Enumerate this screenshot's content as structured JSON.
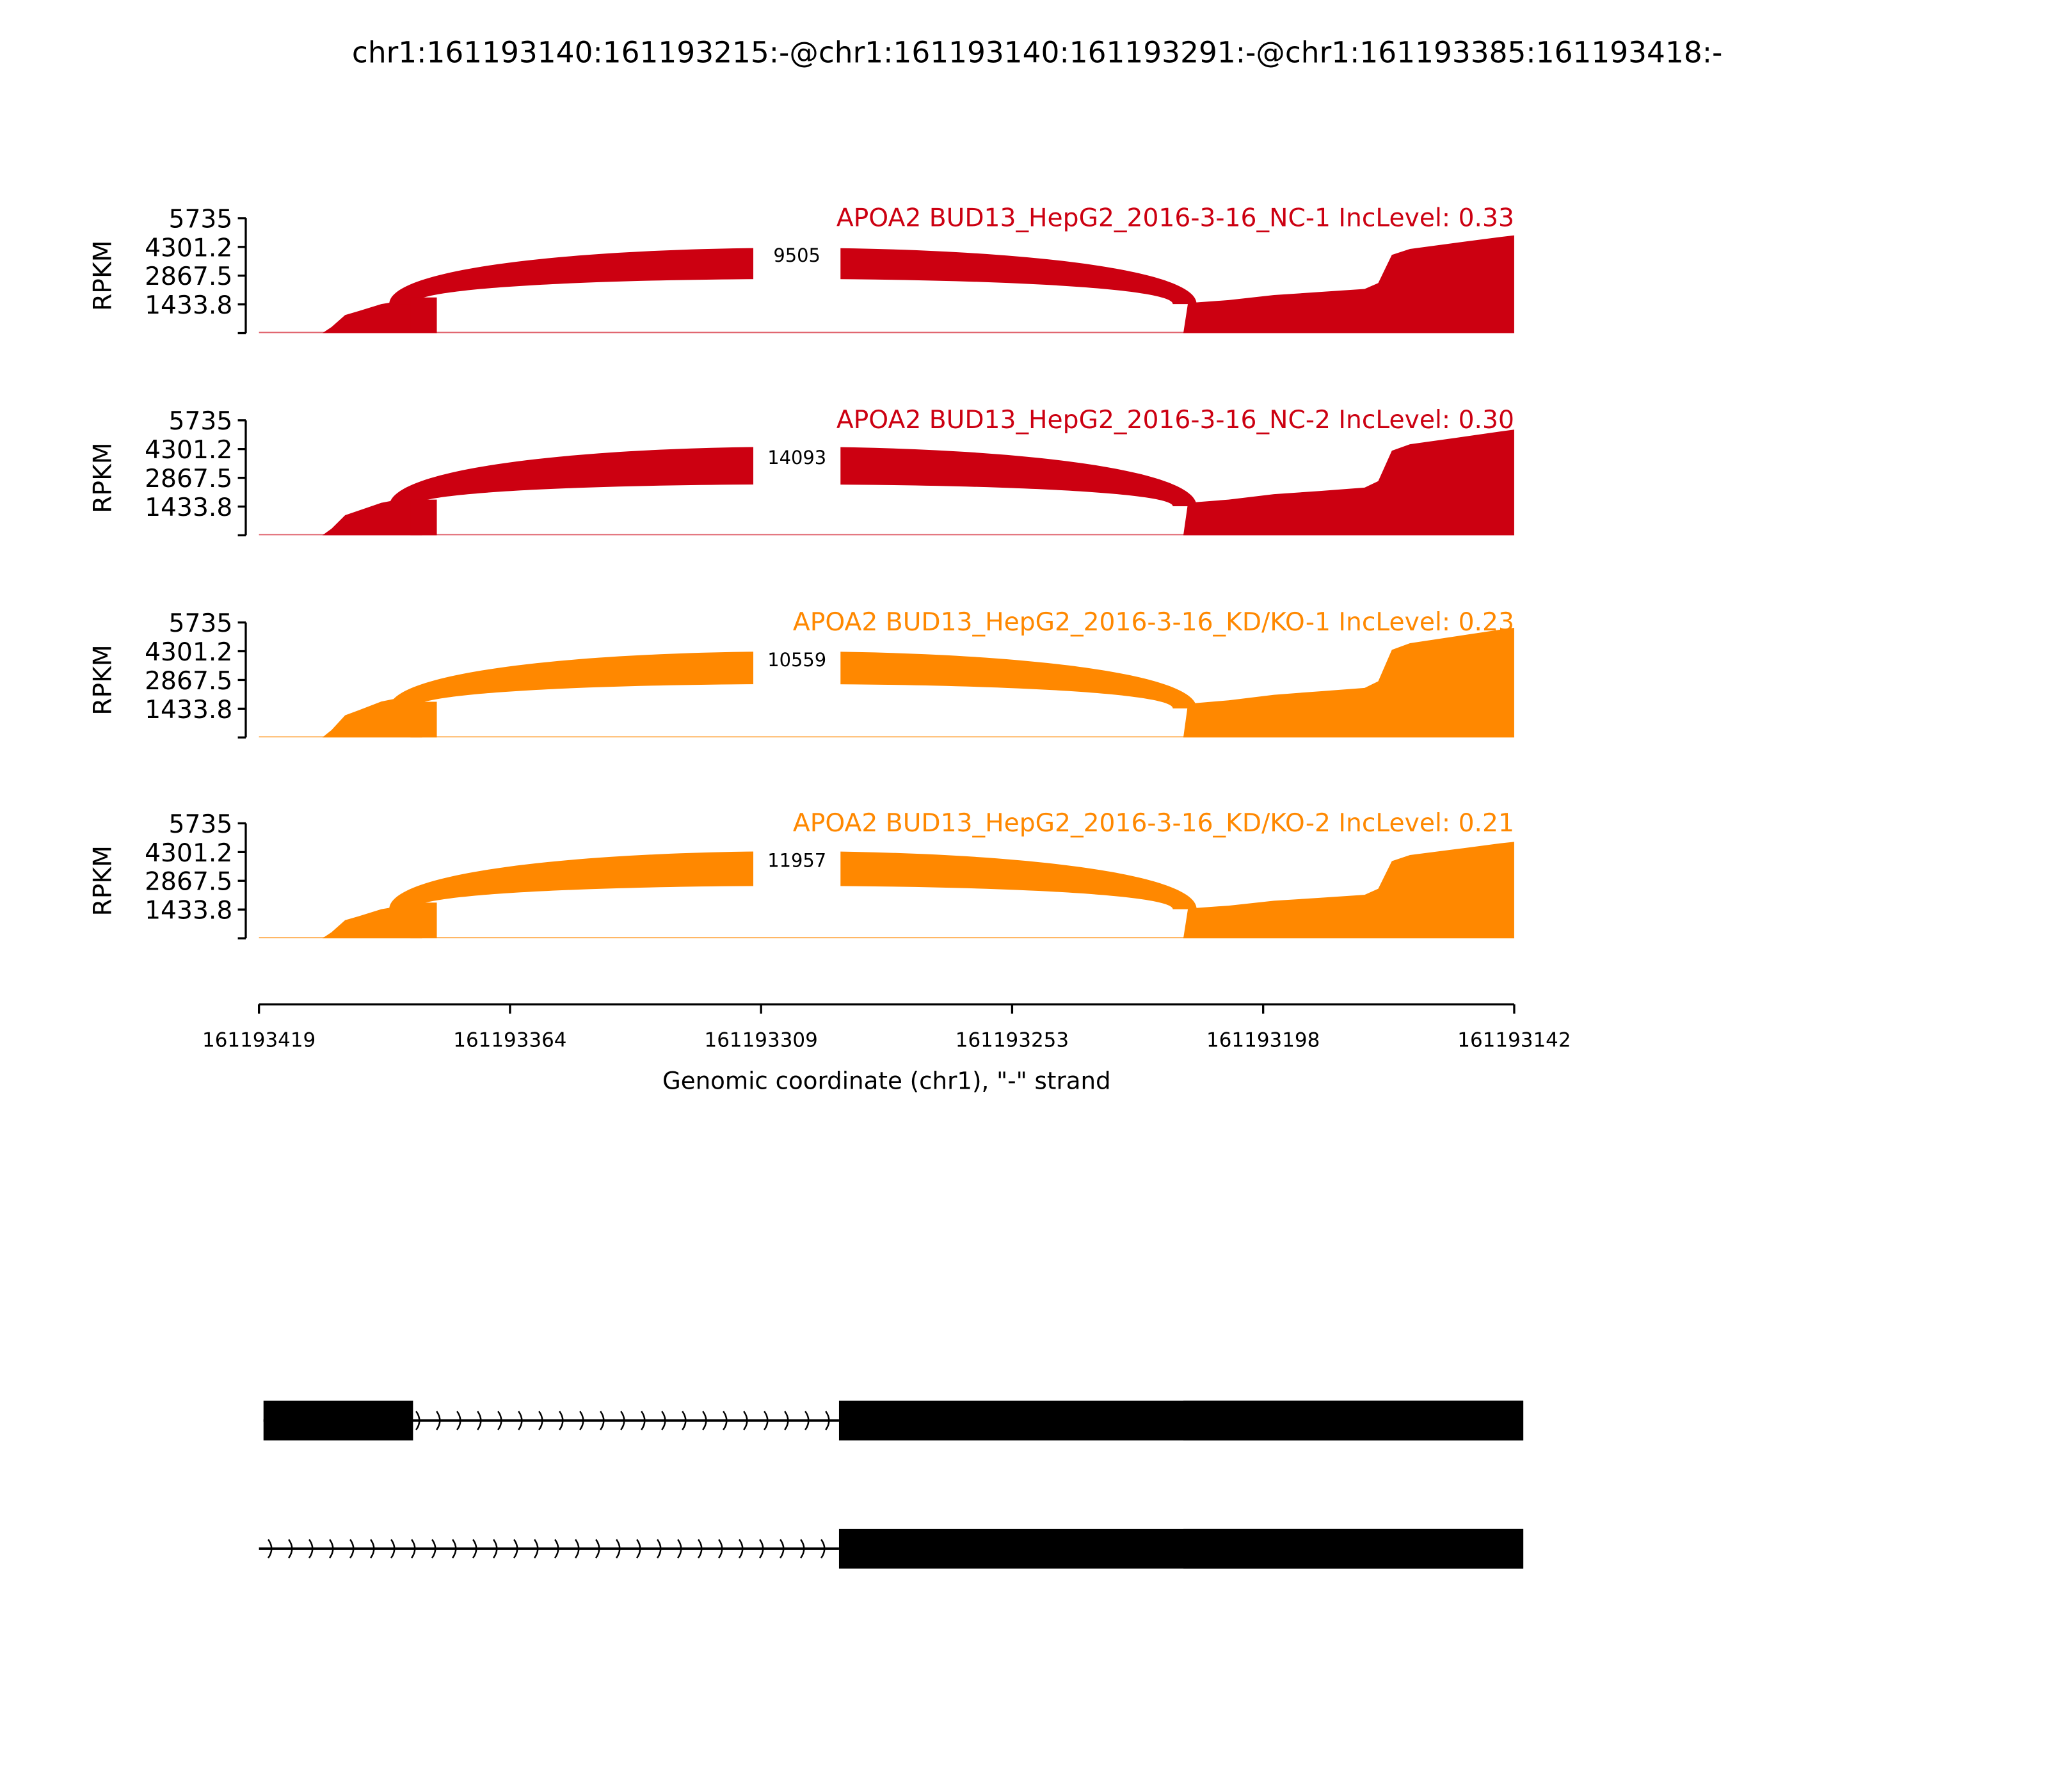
{
  "title": "chr1:161193140:161193215:-@chr1:161193140:161193291:-@chr1:161193385:161193418:-",
  "chart_data": {
    "type": "area",
    "subtype": "sashimi",
    "xlabel": "Genomic coordinate (chr1), \"-\" strand",
    "xlim": [
      161193419,
      161193142
    ],
    "x_ticks": [
      "161193419",
      "161193364",
      "161193309",
      "161193253",
      "161193198",
      "161193142"
    ],
    "ylabel": "RPKM",
    "ylim": [
      0,
      5735
    ],
    "y_ticks": [
      "5735",
      "4301.2",
      "2867.5",
      "1433.8"
    ],
    "grid": false,
    "panels": [
      {
        "label": "APOA2 BUD13_HepG2_2016-3-16_NC-1 IncLevel: 0.33",
        "color": "#cc0011",
        "junction": {
          "from": 161193385,
          "to": 161193215,
          "count": "9505"
        },
        "coverage": [
          [
            161193419,
            0
          ],
          [
            161193405,
            0
          ],
          [
            161193403,
            300
          ],
          [
            161193400,
            900
          ],
          [
            161193397,
            1100
          ],
          [
            161193392,
            1450
          ],
          [
            161193388,
            1600
          ],
          [
            161193384,
            1648
          ],
          [
            161193383,
            0
          ],
          [
            161193215,
            0
          ],
          [
            161193214,
            1500
          ],
          [
            161193205,
            1650
          ],
          [
            161193195,
            1900
          ],
          [
            161193185,
            2050
          ],
          [
            161193175,
            2200
          ],
          [
            161193172,
            2500
          ],
          [
            161193169,
            3900
          ],
          [
            161193165,
            4200
          ],
          [
            161193155,
            4500
          ],
          [
            161193145,
            4800
          ],
          [
            161193142,
            4878
          ]
        ]
      },
      {
        "label": "APOA2 BUD13_HepG2_2016-3-16_NC-2 IncLevel: 0.30",
        "color": "#cc0011",
        "junction": {
          "from": 161193385,
          "to": 161193215,
          "count": "14093"
        },
        "coverage": [
          [
            161193419,
            0
          ],
          [
            161193405,
            0
          ],
          [
            161193403,
            330
          ],
          [
            161193400,
            1000
          ],
          [
            161193397,
            1230
          ],
          [
            161193392,
            1620
          ],
          [
            161193388,
            1790
          ],
          [
            161193384,
            1846
          ],
          [
            161193383,
            0
          ],
          [
            161193215,
            0
          ],
          [
            161193214,
            1620
          ],
          [
            161193205,
            1780
          ],
          [
            161193195,
            2050
          ],
          [
            161193185,
            2210
          ],
          [
            161193175,
            2380
          ],
          [
            161193172,
            2700
          ],
          [
            161193169,
            4220
          ],
          [
            161193165,
            4540
          ],
          [
            161193155,
            4860
          ],
          [
            161193145,
            5180
          ],
          [
            161193142,
            5273
          ]
        ]
      },
      {
        "label": "APOA2 BUD13_HepG2_2016-3-16_KD/KO-1 IncLevel: 0.23",
        "color": "#ff8800",
        "junction": {
          "from": 161193385,
          "to": 161193215,
          "count": "10559"
        },
        "coverage": [
          [
            161193419,
            0
          ],
          [
            161193405,
            0
          ],
          [
            161193403,
            370
          ],
          [
            161193400,
            1110
          ],
          [
            161193397,
            1360
          ],
          [
            161193392,
            1790
          ],
          [
            161193388,
            1980
          ],
          [
            161193384,
            2043
          ],
          [
            161193383,
            0
          ],
          [
            161193215,
            0
          ],
          [
            161193214,
            1680
          ],
          [
            161193205,
            1850
          ],
          [
            161193195,
            2130
          ],
          [
            161193185,
            2300
          ],
          [
            161193175,
            2470
          ],
          [
            161193172,
            2800
          ],
          [
            161193169,
            4370
          ],
          [
            161193165,
            4700
          ],
          [
            161193155,
            5040
          ],
          [
            161193145,
            5380
          ],
          [
            161193142,
            5471
          ]
        ]
      },
      {
        "label": "APOA2 BUD13_HepG2_2016-3-16_KD/KO-2 IncLevel: 0.21",
        "color": "#ff8800",
        "junction": {
          "from": 161193385,
          "to": 161193215,
          "count": "11957"
        },
        "coverage": [
          [
            161193419,
            0
          ],
          [
            161193405,
            0
          ],
          [
            161193403,
            300
          ],
          [
            161193400,
            900
          ],
          [
            161193397,
            1100
          ],
          [
            161193392,
            1450
          ],
          [
            161193388,
            1600
          ],
          [
            161193384,
            1648
          ],
          [
            161193383,
            0
          ],
          [
            161193215,
            0
          ],
          [
            161193214,
            1480
          ],
          [
            161193205,
            1630
          ],
          [
            161193195,
            1870
          ],
          [
            161193185,
            2020
          ],
          [
            161193175,
            2170
          ],
          [
            161193172,
            2470
          ],
          [
            161193169,
            3850
          ],
          [
            161193165,
            4150
          ],
          [
            161193155,
            4440
          ],
          [
            161193145,
            4740
          ],
          [
            161193142,
            4812
          ]
        ]
      }
    ],
    "transcripts": [
      {
        "exons": [
          [
            161193385,
            161193418
          ],
          [
            161193140,
            161193291
          ],
          [
            161193140,
            161193215
          ]
        ],
        "span": [
          161193291,
          161193418
        ]
      },
      {
        "exons": [
          [
            161193140,
            161193291
          ],
          [
            161193140,
            161193215
          ]
        ],
        "span": [
          161193291,
          161193419
        ]
      }
    ]
  }
}
